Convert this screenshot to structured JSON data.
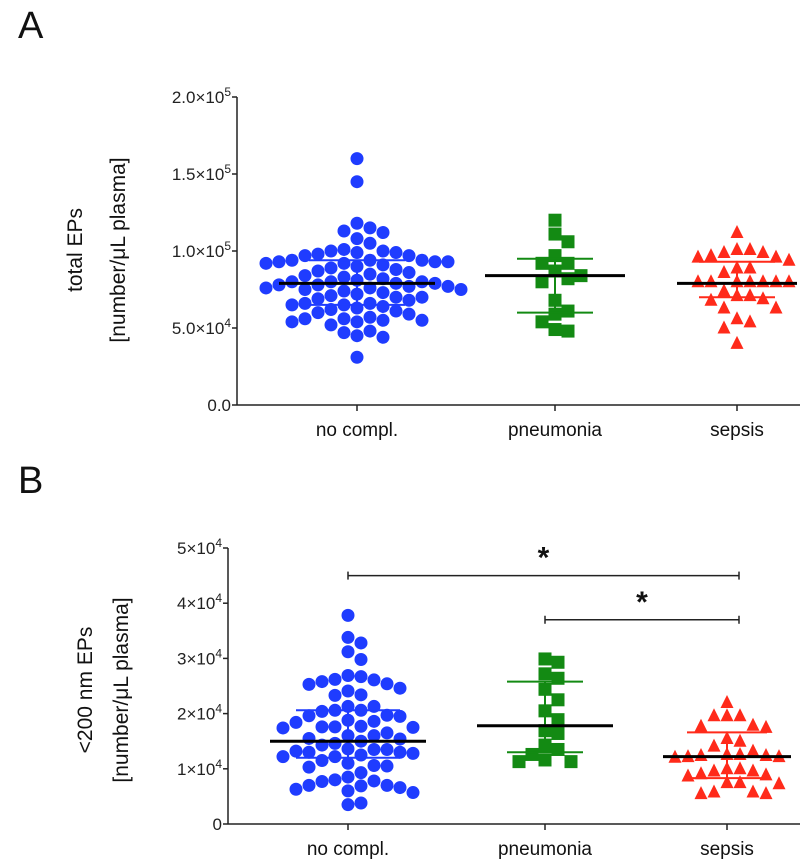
{
  "chart_data": [
    {
      "type": "scatter",
      "panel_label": "A",
      "ylabel": [
        "total EPs",
        "[number/μL plasma]"
      ],
      "ylim": [
        0,
        200000
      ],
      "yticks": [
        {
          "value": 0,
          "base": "0.0",
          "exp": ""
        },
        {
          "value": 50000,
          "base": "5.0×10",
          "exp": "4"
        },
        {
          "value": 100000,
          "base": "1.0×10",
          "exp": "5"
        },
        {
          "value": 150000,
          "base": "1.5×10",
          "exp": "5"
        },
        {
          "value": 200000,
          "base": "2.0×10",
          "exp": "5"
        }
      ],
      "categories": [
        "no compl.",
        "pneumonia",
        "sepsis"
      ],
      "series": [
        {
          "name": "no compl.",
          "marker": "circle",
          "color": "#1f3cff",
          "mean": 79000,
          "sd": [
            65000,
            94000
          ],
          "values": [
            160000,
            145000,
            118000,
            115000,
            113000,
            112000,
            108000,
            105000,
            101000,
            100000,
            100000,
            99000,
            99000,
            98000,
            97000,
            97000,
            94000,
            94000,
            94000,
            93000,
            93000,
            93000,
            92000,
            92000,
            91000,
            90000,
            89000,
            88000,
            87000,
            86000,
            85000,
            84000,
            83000,
            82000,
            81000,
            80000,
            80000,
            80000,
            79000,
            79000,
            78000,
            78000,
            77000,
            77000,
            76000,
            76000,
            75000,
            75000,
            74000,
            73000,
            72000,
            71000,
            70000,
            70000,
            69000,
            68000,
            66000,
            66000,
            65000,
            65000,
            64000,
            63000,
            62000,
            61000,
            60000,
            59000,
            57000,
            56000,
            56000,
            55000,
            55000,
            54000,
            54000,
            52000,
            48000,
            47000,
            45000,
            44000,
            31000
          ]
        },
        {
          "name": "pneumonia",
          "marker": "square",
          "color": "#138a13",
          "mean": 84000,
          "sd": [
            60000,
            95000
          ],
          "values": [
            120000,
            111000,
            106000,
            97000,
            92000,
            92000,
            87000,
            84000,
            82000,
            80000,
            68000,
            61000,
            59000,
            54000,
            49000,
            48000
          ]
        },
        {
          "name": "sepsis",
          "marker": "triangle",
          "color": "#ff2a1a",
          "mean": 79000,
          "sd": [
            70000,
            93000
          ],
          "values": [
            112000,
            101000,
            101000,
            99000,
            99000,
            97000,
            96000,
            96000,
            94000,
            89000,
            89000,
            86000,
            80000,
            80000,
            80000,
            80000,
            80000,
            80000,
            80000,
            74000,
            71000,
            71000,
            69000,
            68000,
            63000,
            63000,
            56000,
            54000,
            50000,
            40000
          ]
        }
      ],
      "significance": []
    },
    {
      "type": "scatter",
      "panel_label": "B",
      "ylabel": [
        "<200 nm EPs",
        "[number/μL plasma]"
      ],
      "ylim": [
        0,
        50000
      ],
      "yticks": [
        {
          "value": 0,
          "base": "0",
          "exp": ""
        },
        {
          "value": 10000,
          "base": "1×10",
          "exp": "4"
        },
        {
          "value": 20000,
          "base": "2×10",
          "exp": "4"
        },
        {
          "value": 30000,
          "base": "3×10",
          "exp": "4"
        },
        {
          "value": 40000,
          "base": "4×10",
          "exp": "4"
        },
        {
          "value": 50000,
          "base": "5×10",
          "exp": "4"
        }
      ],
      "categories": [
        "no compl.",
        "pneumonia",
        "sepsis"
      ],
      "series": [
        {
          "name": "no compl.",
          "marker": "circle",
          "color": "#1f3cff",
          "mean": 15000,
          "sd": [
            12000,
            20600
          ],
          "values": [
            37800,
            33800,
            32800,
            31200,
            29800,
            26900,
            26700,
            26200,
            26100,
            25800,
            25400,
            25300,
            24600,
            24100,
            23400,
            23300,
            21300,
            21300,
            20600,
            20400,
            20600,
            19600,
            19700,
            19500,
            18600,
            18800,
            18400,
            17600,
            17400,
            17500,
            16500,
            17600,
            17700,
            16000,
            16000,
            15500,
            15400,
            15000,
            14600,
            14300,
            13600,
            13500,
            13200,
            13500,
            13000,
            13000,
            12800,
            12500,
            12200,
            12200,
            11500,
            11000,
            10600,
            10300,
            10500,
            9300,
            8500,
            8000,
            7700,
            7800,
            7000,
            7000,
            6900,
            6600,
            6300,
            6000,
            5700,
            3800,
            3500
          ]
        },
        {
          "name": "pneumonia",
          "marker": "square",
          "color": "#138a13",
          "mean": 17800,
          "sd": [
            13000,
            25800
          ],
          "values": [
            29900,
            29300,
            27200,
            26400,
            24400,
            22500,
            20500,
            18900,
            16900,
            16400,
            14300,
            13500,
            12600,
            11600,
            11300,
            11300
          ]
        },
        {
          "name": "sepsis",
          "marker": "triangle",
          "color": "#ff2a1a",
          "mean": 12200,
          "sd": [
            8300,
            16600
          ],
          "values": [
            22000,
            19600,
            19600,
            19600,
            17700,
            17900,
            17500,
            15500,
            15000,
            14100,
            13200,
            12400,
            12600,
            12200,
            12400,
            12100,
            12600,
            12200,
            10000,
            10000,
            9600,
            9600,
            9100,
            8700,
            8900,
            7500,
            7300,
            7500,
            5800,
            5500,
            5500,
            5800
          ]
        }
      ],
      "significance": [
        {
          "from": "no compl.",
          "to": "sepsis",
          "y": 45000,
          "label": "*"
        },
        {
          "from": "pneumonia",
          "to": "sepsis",
          "y": 37000,
          "label": "*"
        }
      ]
    }
  ]
}
